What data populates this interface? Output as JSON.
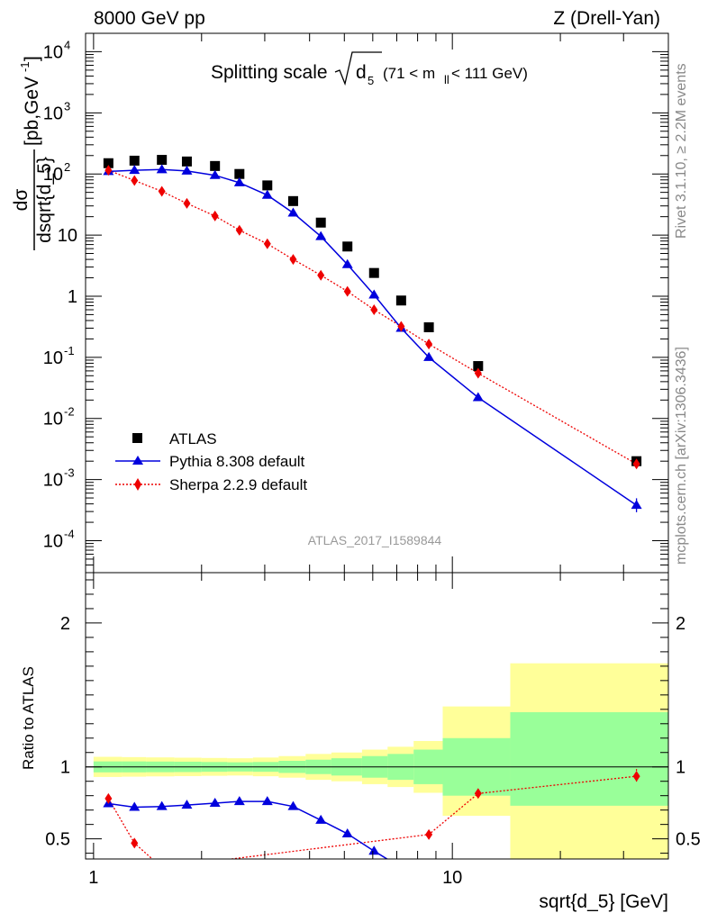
{
  "header": {
    "left": "8000 GeV pp",
    "right": "Z (Drell-Yan)"
  },
  "title": {
    "prefix": "Splitting scale",
    "var": "d",
    "var_sub": "5",
    "range_a": "(71 < m",
    "range_sub": "ll",
    "range_b": " < 111 GeV)"
  },
  "ylabel_top": {
    "num": "dσ",
    "den": "dsqrt{d_5}",
    "unit_a": "[pb,GeV",
    "unit_sup": "-1",
    "unit_b": "]"
  },
  "ylabel_bottom": "Ratio to ATLAS",
  "xlabel": "sqrt{d_5} [GeV]",
  "side_top": "Rivet 3.1.10, ≥ 2.2M events",
  "side_bottom": "mcplots.cern.ch [arXiv:1306.3436]",
  "watermark": "ATLAS_2017_I1589844",
  "colors": {
    "atlas": "#000000",
    "pythia": "#0000dd",
    "sherpa": "#ee0000",
    "band_inner": "#99ff99",
    "band_outer": "#ffff99"
  },
  "chart_data": [
    {
      "type": "scatter",
      "panel": "main",
      "xscale": "log",
      "yscale": "log",
      "xlim": [
        0.95,
        40
      ],
      "ylim": [
        3e-05,
        20000
      ],
      "yticks": [
        {
          "v": 0.0001,
          "m": "10",
          "e": "-4"
        },
        {
          "v": 0.001,
          "m": "10",
          "e": "-3"
        },
        {
          "v": 0.01,
          "m": "10",
          "e": "-2"
        },
        {
          "v": 0.1,
          "m": "10",
          "e": "-1"
        },
        {
          "v": 1,
          "m": "1",
          "e": ""
        },
        {
          "v": 10,
          "m": "10",
          "e": ""
        },
        {
          "v": 100,
          "m": "10",
          "e": "2"
        },
        {
          "v": 1000,
          "m": "10",
          "e": "3"
        },
        {
          "v": 10000,
          "m": "10",
          "e": "4"
        }
      ],
      "series": [
        {
          "name": "ATLAS",
          "marker": "square",
          "x": [
            1.1,
            1.3,
            1.55,
            1.82,
            2.18,
            2.55,
            3.05,
            3.6,
            4.3,
            5.1,
            6.05,
            7.2,
            8.6,
            11.8,
            32.6
          ],
          "y": [
            150,
            165,
            170,
            160,
            135,
            100,
            65,
            36,
            16,
            6.5,
            2.4,
            0.85,
            0.31,
            0.072,
            0.002
          ]
        },
        {
          "name": "Pythia 8.308 default",
          "marker": "triangle",
          "line": "solid",
          "x": [
            1.1,
            1.3,
            1.55,
            1.82,
            2.18,
            2.55,
            3.05,
            3.6,
            4.3,
            5.1,
            6.05,
            7.2,
            8.6,
            11.8,
            32.6
          ],
          "y": [
            110,
            115,
            118,
            112,
            95,
            72,
            45,
            23,
            9.5,
            3.3,
            1.05,
            0.3,
            0.1,
            0.022,
            0.00038
          ]
        },
        {
          "name": "Sherpa 2.2.9 default",
          "marker": "diamond",
          "line": "dotted",
          "x": [
            1.1,
            1.3,
            1.55,
            1.82,
            2.18,
            2.55,
            3.05,
            3.6,
            4.3,
            5.1,
            6.05,
            7.2,
            8.6,
            11.8,
            32.6
          ],
          "y": [
            115,
            78,
            52,
            33,
            20.5,
            12,
            7.2,
            4.0,
            2.2,
            1.2,
            0.6,
            0.32,
            0.165,
            0.055,
            0.0018
          ]
        }
      ]
    },
    {
      "type": "line",
      "panel": "ratio",
      "xscale": "log",
      "xlim": [
        0.95,
        40
      ],
      "ylim": [
        0.36,
        2.35
      ],
      "yticks": [
        0.5,
        1,
        2
      ],
      "xticks": [
        {
          "v": 1,
          "label": "1"
        },
        {
          "v": 10,
          "label": "10"
        }
      ],
      "reference": 1,
      "bands": {
        "edges": [
          1,
          1.2,
          1.4,
          1.68,
          2.0,
          2.36,
          2.78,
          3.28,
          3.9,
          4.6,
          5.6,
          6.6,
          7.8,
          9.4,
          14.5,
          40
        ],
        "inner": [
          [
            0.962,
            1.038
          ],
          [
            0.962,
            1.038
          ],
          [
            0.963,
            1.037
          ],
          [
            0.964,
            1.036
          ],
          [
            0.966,
            1.034
          ],
          [
            0.968,
            1.032
          ],
          [
            0.966,
            1.034
          ],
          [
            0.958,
            1.042
          ],
          [
            0.95,
            1.05
          ],
          [
            0.94,
            1.06
          ],
          [
            0.925,
            1.075
          ],
          [
            0.91,
            1.09
          ],
          [
            0.88,
            1.12
          ],
          [
            0.8,
            1.2
          ],
          [
            0.73,
            1.38
          ]
        ],
        "outer": [
          [
            0.93,
            1.07
          ],
          [
            0.932,
            1.068
          ],
          [
            0.934,
            1.066
          ],
          [
            0.936,
            1.064
          ],
          [
            0.938,
            1.062
          ],
          [
            0.94,
            1.06
          ],
          [
            0.935,
            1.065
          ],
          [
            0.925,
            1.075
          ],
          [
            0.91,
            1.09
          ],
          [
            0.9,
            1.1
          ],
          [
            0.88,
            1.12
          ],
          [
            0.86,
            1.14
          ],
          [
            0.82,
            1.18
          ],
          [
            0.66,
            1.42
          ],
          [
            0.3,
            1.72
          ]
        ]
      },
      "series": [
        {
          "name": "Pythia 8.308 default",
          "x": [
            1.1,
            1.3,
            1.55,
            1.82,
            2.18,
            2.55,
            3.05,
            3.6,
            4.3,
            5.1,
            6.05,
            7.2
          ],
          "y": [
            0.745,
            0.72,
            0.725,
            0.735,
            0.748,
            0.76,
            0.76,
            0.725,
            0.63,
            0.535,
            0.415,
            0.3
          ]
        },
        {
          "name": "Sherpa 2.2.9 default",
          "x": [
            1.1,
            1.3,
            1.55,
            8.6,
            11.8,
            32.6
          ],
          "y": [
            0.78,
            0.47,
            0.3,
            0.53,
            0.815,
            0.935
          ]
        }
      ]
    }
  ]
}
